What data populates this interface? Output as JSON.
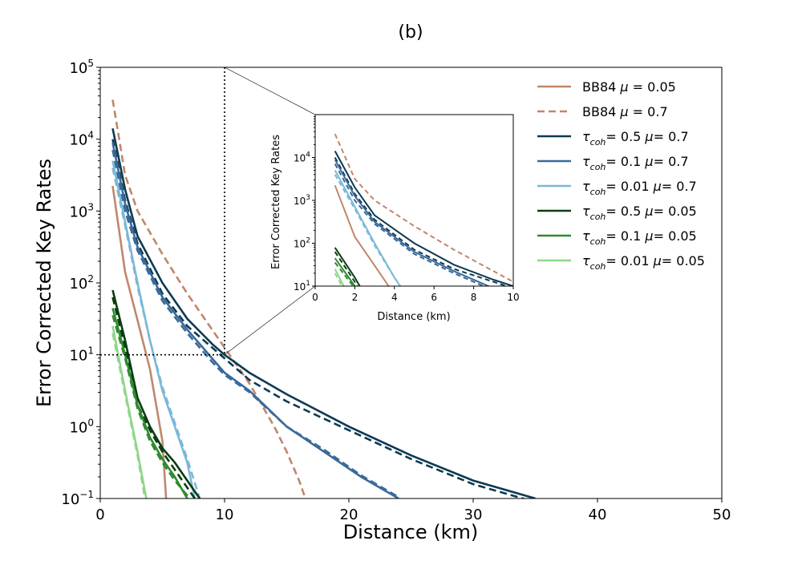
{
  "chart_data": {
    "title": "(b)",
    "main": {
      "type": "line",
      "xlabel": "Distance (km)",
      "ylabel": "Error Corrected Key Rates",
      "xlim": [
        0,
        50
      ],
      "ylim_log10": [
        -1,
        5
      ],
      "xticks": [
        0,
        10,
        20,
        30,
        40,
        50
      ],
      "yticks": [
        {
          "base": "10",
          "exp": "−1",
          "log": -1
        },
        {
          "base": "10",
          "exp": "0",
          "log": 0
        },
        {
          "base": "10",
          "exp": "1",
          "log": 1
        },
        {
          "base": "10",
          "exp": "2",
          "log": 2
        },
        {
          "base": "10",
          "exp": "3",
          "log": 3
        },
        {
          "base": "10",
          "exp": "4",
          "log": 4
        },
        {
          "base": "10",
          "exp": "5",
          "log": 5
        }
      ],
      "zoom_guide": {
        "x": 10,
        "y_log": 1
      }
    },
    "inset": {
      "type": "line",
      "xlabel": "Distance (km)",
      "ylabel": "Error Corrected Key Rates",
      "xlim": [
        0,
        10
      ],
      "ylim_log10": [
        1,
        5
      ],
      "xticks": [
        0,
        2,
        4,
        6,
        8,
        10
      ],
      "yticks": [
        {
          "base": "10",
          "exp": "1",
          "log": 1
        },
        {
          "base": "10",
          "exp": "2",
          "log": 2
        },
        {
          "base": "10",
          "exp": "3",
          "log": 3
        },
        {
          "base": "10",
          "exp": "4",
          "log": 4
        }
      ]
    },
    "legend": {
      "position": "top-right",
      "entries": [
        {
          "prefix": "BB84 ",
          "greek": "μ",
          "suffix": " = 0.05",
          "color": "#c0876a",
          "dash": false
        },
        {
          "prefix": "BB84 ",
          "greek": "μ",
          "suffix": " = 0.7",
          "color": "#c0876a",
          "dash": true
        },
        {
          "tau": "τ",
          "sub": "coh",
          "mid": "= 0.5 ",
          "greek": "μ",
          "suffix": "= 0.7",
          "color": "#0d3a52",
          "dash": false
        },
        {
          "tau": "τ",
          "sub": "coh",
          "mid": "= 0.1 ",
          "greek": "μ",
          "suffix": "= 0.7",
          "color": "#3a6a9a",
          "dash": false
        },
        {
          "tau": "τ",
          "sub": "coh",
          "mid": "= 0.01 ",
          "greek": "μ",
          "suffix": "= 0.7",
          "color": "#7ab8d8",
          "dash": false
        },
        {
          "tau": "τ",
          "sub": "coh",
          "mid": "= 0.5 ",
          "greek": "μ",
          "suffix": "= 0.05",
          "color": "#0b3d10",
          "dash": false
        },
        {
          "tau": "τ",
          "sub": "coh",
          "mid": "= 0.1 ",
          "greek": "μ",
          "suffix": "= 0.05",
          "color": "#2e8b2e",
          "dash": false
        },
        {
          "tau": "τ",
          "sub": "coh",
          "mid": "= 0.01 ",
          "greek": "μ",
          "suffix": "= 0.05",
          "color": "#8fd68a",
          "dash": false
        }
      ]
    },
    "series": [
      {
        "name": "BB84 mu=0.05",
        "color": "#c0876a",
        "dash": false,
        "x": [
          1,
          2,
          3,
          4,
          5,
          5.3
        ],
        "log_y": [
          3.35,
          2.15,
          1.48,
          0.8,
          -0.2,
          -1.0
        ]
      },
      {
        "name": "BB84 mu=0.7",
        "color": "#c0876a",
        "dash": true,
        "x": [
          1,
          2,
          3,
          5,
          7,
          9,
          10,
          11,
          12,
          13,
          14,
          15,
          16,
          16.5
        ],
        "log_y": [
          4.55,
          3.5,
          3.0,
          2.4,
          1.85,
          1.35,
          1.1,
          0.85,
          0.6,
          0.3,
          0.0,
          -0.35,
          -0.75,
          -1.0
        ]
      },
      {
        "name": "tau 0.5 mu 0.7",
        "color": "#0d3a52",
        "dash": false,
        "x": [
          1,
          2,
          3,
          5,
          7,
          9,
          10,
          12,
          15,
          20,
          25,
          30,
          35
        ],
        "log_y": [
          4.15,
          3.3,
          2.65,
          2.0,
          1.5,
          1.15,
          1.0,
          0.75,
          0.45,
          0.0,
          -0.4,
          -0.75,
          -1.0
        ]
      },
      {
        "name": "tau 0.5 mu 0.7 (dashed)",
        "color": "#0d3a52",
        "dash": true,
        "x": [
          1,
          2,
          3,
          5,
          7,
          9,
          10,
          12,
          15,
          20,
          25,
          30,
          35
        ],
        "log_y": [
          4.0,
          3.15,
          2.55,
          1.85,
          1.4,
          1.1,
          0.95,
          0.65,
          0.35,
          -0.05,
          -0.45,
          -0.8,
          -1.05
        ]
      },
      {
        "name": "tau 0.1 mu 0.7",
        "color": "#3a6a9a",
        "dash": false,
        "x": [
          1,
          2,
          3,
          5,
          7,
          9,
          10,
          12,
          15,
          18,
          21,
          24
        ],
        "log_y": [
          3.95,
          3.1,
          2.5,
          1.8,
          1.35,
          0.95,
          0.75,
          0.5,
          0.0,
          -0.35,
          -0.7,
          -1.0
        ]
      },
      {
        "name": "tau 0.1 mu 0.7 (dashed)",
        "color": "#3a6a9a",
        "dash": true,
        "x": [
          1,
          2,
          3,
          5,
          7,
          9,
          10,
          12,
          15,
          18,
          21,
          24
        ],
        "log_y": [
          3.85,
          3.0,
          2.45,
          1.75,
          1.3,
          0.9,
          0.72,
          0.48,
          0.0,
          -0.32,
          -0.68,
          -0.98
        ]
      },
      {
        "name": "tau 0.01 mu 0.7",
        "color": "#7ab8d8",
        "dash": false,
        "x": [
          1,
          2,
          3,
          4,
          5,
          6,
          7,
          7.6
        ],
        "log_y": [
          3.7,
          2.85,
          2.0,
          1.2,
          0.5,
          0.0,
          -0.5,
          -1.0
        ]
      },
      {
        "name": "tau 0.01 mu 0.7 (dashed)",
        "color": "#7ab8d8",
        "dash": true,
        "x": [
          1,
          2,
          3,
          4,
          5,
          6,
          7,
          8
        ],
        "log_y": [
          3.6,
          2.8,
          1.95,
          1.2,
          0.55,
          0.05,
          -0.45,
          -1.0
        ]
      },
      {
        "name": "tau 0.5 mu 0.05",
        "color": "#0b3d10",
        "dash": false,
        "x": [
          1,
          2,
          3,
          4,
          5,
          6,
          7,
          8
        ],
        "log_y": [
          1.9,
          1.2,
          0.4,
          0.0,
          -0.3,
          -0.5,
          -0.75,
          -1.0
        ]
      },
      {
        "name": "tau 0.5 mu 0.05 (dashed)",
        "color": "#0b3d10",
        "dash": true,
        "x": [
          1,
          2,
          3,
          4,
          5,
          6,
          7,
          7.6
        ],
        "log_y": [
          1.8,
          1.1,
          0.3,
          -0.05,
          -0.35,
          -0.6,
          -0.85,
          -1.0
        ]
      },
      {
        "name": "tau 0.1 mu 0.05",
        "color": "#2e8b2e",
        "dash": false,
        "x": [
          1,
          2,
          3,
          4,
          5,
          6,
          7
        ],
        "log_y": [
          1.65,
          1.0,
          0.3,
          -0.15,
          -0.45,
          -0.7,
          -1.0
        ]
      },
      {
        "name": "tau 0.1 mu 0.05 (dashed)",
        "color": "#2e8b2e",
        "dash": true,
        "x": [
          1,
          2,
          3,
          4,
          5,
          6,
          7.2
        ],
        "log_y": [
          1.55,
          0.95,
          0.25,
          -0.2,
          -0.5,
          -0.75,
          -1.0
        ]
      },
      {
        "name": "tau 0.01 mu 0.05",
        "color": "#8fd68a",
        "dash": false,
        "x": [
          1,
          2,
          3,
          3.7
        ],
        "log_y": [
          1.4,
          0.5,
          -0.35,
          -1.0
        ]
      },
      {
        "name": "tau 0.01 mu 0.05 (dashed)",
        "color": "#8fd68a",
        "dash": true,
        "x": [
          1,
          2,
          3,
          3.6
        ],
        "log_y": [
          1.3,
          0.45,
          -0.4,
          -1.0
        ]
      }
    ]
  }
}
